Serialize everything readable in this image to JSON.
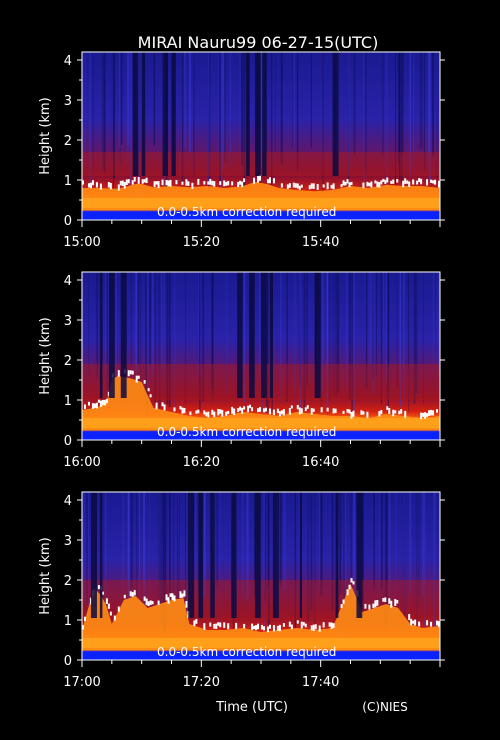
{
  "page": {
    "title": "MIRAI Nauru99 06-27-15(UTC)",
    "xlabel": "Time (UTC)",
    "credit": "(C)NIES"
  },
  "colors": {
    "background": "#000000",
    "text": "#ffffff",
    "backscatter_low": "#1a1aa8",
    "backscatter_mid": "#c01a10",
    "backscatter_high": "#ff9a10",
    "backscatter_peak": "#ffffff",
    "ground_band": "#0a20ff"
  },
  "chart_data": [
    {
      "type": "heatmap",
      "ylabel": "Height (km)",
      "annotation": "0.0-0.5km correction required",
      "xlim": [
        0,
        60
      ],
      "ylim": [
        0,
        4.2
      ],
      "x_ticks": [
        {
          "value": 0,
          "label": "15:00"
        },
        {
          "value": 20,
          "label": "15:20"
        },
        {
          "value": 40,
          "label": "15:40"
        }
      ],
      "y_ticks": [
        0,
        1,
        2,
        3,
        4
      ],
      "cloud_base_km": [
        [
          0,
          0.8
        ],
        [
          3,
          0.8
        ],
        [
          6,
          0.78
        ],
        [
          9,
          0.9
        ],
        [
          10,
          0.9
        ],
        [
          12,
          0.82
        ],
        [
          15,
          0.85
        ],
        [
          18,
          0.82
        ],
        [
          21,
          0.85
        ],
        [
          24,
          0.8
        ],
        [
          27,
          0.85
        ],
        [
          29,
          0.95
        ],
        [
          31,
          0.9
        ],
        [
          33,
          0.8
        ],
        [
          36,
          0.75
        ],
        [
          39,
          0.72
        ],
        [
          42,
          0.75
        ],
        [
          45,
          0.85
        ],
        [
          48,
          0.8
        ],
        [
          51,
          0.88
        ],
        [
          54,
          0.85
        ],
        [
          57,
          0.85
        ],
        [
          60,
          0.8
        ]
      ],
      "elevated_layer_km": [
        1.1,
        1.7
      ],
      "clear_columns_min": [
        8.5,
        10,
        13.5,
        15,
        27.5,
        29,
        30.2,
        42
      ]
    },
    {
      "type": "heatmap",
      "ylabel": "Height (km)",
      "annotation": "0.0-0.5km correction required",
      "xlim": [
        0,
        60
      ],
      "ylim": [
        0,
        4.2
      ],
      "x_ticks": [
        {
          "value": 0,
          "label": "16:00"
        },
        {
          "value": 20,
          "label": "16:20"
        },
        {
          "value": 40,
          "label": "16:40"
        }
      ],
      "y_ticks": [
        0,
        1,
        2,
        3,
        4
      ],
      "cloud_base_km": [
        [
          0,
          0.75
        ],
        [
          2,
          0.8
        ],
        [
          4,
          0.9
        ],
        [
          5,
          1.5
        ],
        [
          6,
          1.6
        ],
        [
          8,
          1.55
        ],
        [
          10,
          1.45
        ],
        [
          12,
          0.8
        ],
        [
          15,
          0.7
        ],
        [
          18,
          0.6
        ],
        [
          21,
          0.55
        ],
        [
          24,
          0.6
        ],
        [
          27,
          0.7
        ],
        [
          30,
          0.65
        ],
        [
          33,
          0.6
        ],
        [
          36,
          0.7
        ],
        [
          39,
          0.65
        ],
        [
          42,
          0.6
        ],
        [
          45,
          0.6
        ],
        [
          48,
          0.55
        ],
        [
          51,
          0.65
        ],
        [
          54,
          0.6
        ],
        [
          57,
          0.55
        ],
        [
          60,
          0.6
        ]
      ],
      "elevated_layer_km": [
        1.0,
        1.9
      ],
      "clear_columns_min": [
        3,
        4.5,
        6.5,
        26,
        28,
        30,
        31.5,
        39
      ]
    },
    {
      "type": "heatmap",
      "ylabel": "Height (km)",
      "annotation": "0.0-0.5km correction required",
      "xlim": [
        0,
        60
      ],
      "ylim": [
        0,
        4.2
      ],
      "x_ticks": [
        {
          "value": 0,
          "label": "17:00"
        },
        {
          "value": 20,
          "label": "17:20"
        },
        {
          "value": 40,
          "label": "17:40"
        }
      ],
      "y_ticks": [
        0,
        1,
        2,
        3,
        4
      ],
      "cloud_base_km": [
        [
          0,
          0.75
        ],
        [
          2,
          1.8
        ],
        [
          3,
          1.65
        ],
        [
          4,
          1.4
        ],
        [
          5,
          0.9
        ],
        [
          7,
          1.5
        ],
        [
          9,
          1.6
        ],
        [
          11,
          1.3
        ],
        [
          13,
          1.4
        ],
        [
          15,
          1.5
        ],
        [
          17,
          1.55
        ],
        [
          18,
          0.9
        ],
        [
          21,
          0.75
        ],
        [
          24,
          0.75
        ],
        [
          27,
          0.8
        ],
        [
          30,
          0.7
        ],
        [
          33,
          0.75
        ],
        [
          36,
          0.8
        ],
        [
          39,
          0.75
        ],
        [
          42,
          0.8
        ],
        [
          45,
          1.9
        ],
        [
          47,
          1.2
        ],
        [
          49,
          1.3
        ],
        [
          51,
          1.4
        ],
        [
          53,
          1.3
        ],
        [
          55,
          0.9
        ],
        [
          57,
          0.8
        ],
        [
          60,
          0.85
        ]
      ],
      "elevated_layer_km": [
        1.0,
        2.0
      ],
      "clear_columns_min": [
        1.5,
        3,
        17.8,
        19.5,
        21.5,
        25,
        29,
        32,
        36.5,
        42.5,
        46
      ]
    }
  ]
}
